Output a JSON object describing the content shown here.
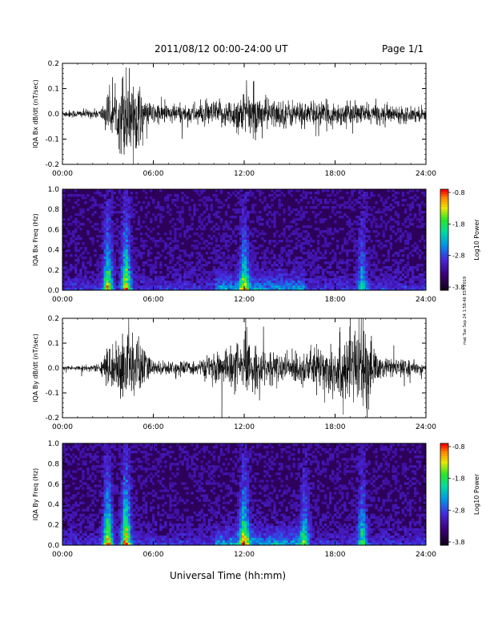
{
  "header": {
    "title": "2011/08/12  00:00-24:00 UT",
    "page": "Page 1/1"
  },
  "footer": {
    "xlabel": "Universal Time (hh:mm)",
    "side_note": "mat Tue Sep 24 1:58:46 EST 2019"
  },
  "colorbar": {
    "label": "Log10 Power",
    "ticks": [
      "-0.8",
      "-1.8",
      "-2.8",
      "-3.8"
    ]
  },
  "chart_data": [
    {
      "type": "line",
      "title": "",
      "ylabel": "IQA Bx dB/dt (nT/sec)",
      "xlabel": "",
      "xlim": [
        0,
        24
      ],
      "ylim": [
        -0.2,
        0.2
      ],
      "x_ticks": [
        "00:00",
        "06:00",
        "12:00",
        "18:00",
        "24:00"
      ],
      "y_ticks": [
        "0.2",
        "0.1",
        "0.0",
        "-0.1",
        "-0.2"
      ],
      "envelope": [
        {
          "t": 0.0,
          "amp": 0.015
        },
        {
          "t": 2.5,
          "amp": 0.02
        },
        {
          "t": 3.0,
          "amp": 0.09
        },
        {
          "t": 3.5,
          "amp": 0.07
        },
        {
          "t": 4.0,
          "amp": 0.2
        },
        {
          "t": 4.6,
          "amp": 0.2
        },
        {
          "t": 5.5,
          "amp": 0.05
        },
        {
          "t": 8.0,
          "amp": 0.04
        },
        {
          "t": 11.0,
          "amp": 0.06
        },
        {
          "t": 12.0,
          "amp": 0.1
        },
        {
          "t": 14.0,
          "amp": 0.06
        },
        {
          "t": 18.0,
          "amp": 0.05
        },
        {
          "t": 24.0,
          "amp": 0.03
        }
      ]
    },
    {
      "type": "heatmap",
      "title": "",
      "ylabel": "IQA Bx Freq (Hz)",
      "xlim": [
        0,
        24
      ],
      "ylim": [
        0.0,
        1.0
      ],
      "x_ticks": [
        "00:00",
        "06:00",
        "12:00",
        "18:00",
        "24:00"
      ],
      "y_ticks": [
        "1.0",
        "0.8",
        "0.6",
        "0.4",
        "0.2",
        "0.0"
      ],
      "zlim": [
        -3.8,
        -0.8
      ],
      "activity": [
        {
          "t": 3.0,
          "level": 0.6
        },
        {
          "t": 4.2,
          "level": 0.7
        },
        {
          "t": 12.0,
          "level": 0.5
        },
        {
          "t": 19.8,
          "level": 0.35
        }
      ]
    },
    {
      "type": "line",
      "title": "",
      "ylabel": "IQA By dB/dt (nT/sec)",
      "xlabel": "",
      "xlim": [
        0,
        24
      ],
      "ylim": [
        -0.2,
        0.2
      ],
      "x_ticks": [
        "00:00",
        "06:00",
        "12:00",
        "18:00",
        "24:00"
      ],
      "y_ticks": [
        "0.2",
        "0.1",
        "0.0",
        "-0.1",
        "-0.2"
      ],
      "envelope": [
        {
          "t": 0.0,
          "amp": 0.01
        },
        {
          "t": 2.5,
          "amp": 0.015
        },
        {
          "t": 3.0,
          "amp": 0.1
        },
        {
          "t": 3.5,
          "amp": 0.08
        },
        {
          "t": 4.2,
          "amp": 0.2
        },
        {
          "t": 4.8,
          "amp": 0.15
        },
        {
          "t": 6.0,
          "amp": 0.03
        },
        {
          "t": 9.0,
          "amp": 0.03
        },
        {
          "t": 12.0,
          "amp": 0.12
        },
        {
          "t": 14.0,
          "amp": 0.06
        },
        {
          "t": 16.5,
          "amp": 0.08
        },
        {
          "t": 19.8,
          "amp": 0.2
        },
        {
          "t": 21.0,
          "amp": 0.05
        },
        {
          "t": 24.0,
          "amp": 0.02
        }
      ]
    },
    {
      "type": "heatmap",
      "title": "",
      "ylabel": "IQA By Freq (Hz)",
      "xlim": [
        0,
        24
      ],
      "ylim": [
        0.0,
        1.0
      ],
      "x_ticks": [
        "00:00",
        "06:00",
        "12:00",
        "18:00",
        "24:00"
      ],
      "y_ticks": [
        "1.0",
        "0.8",
        "0.6",
        "0.4",
        "0.2",
        "0.0"
      ],
      "zlim": [
        -3.8,
        -0.8
      ],
      "activity": [
        {
          "t": 3.0,
          "level": 0.7
        },
        {
          "t": 4.2,
          "level": 0.8
        },
        {
          "t": 12.0,
          "level": 0.6
        },
        {
          "t": 16.0,
          "level": 0.4
        },
        {
          "t": 19.8,
          "level": 0.45
        }
      ]
    }
  ]
}
